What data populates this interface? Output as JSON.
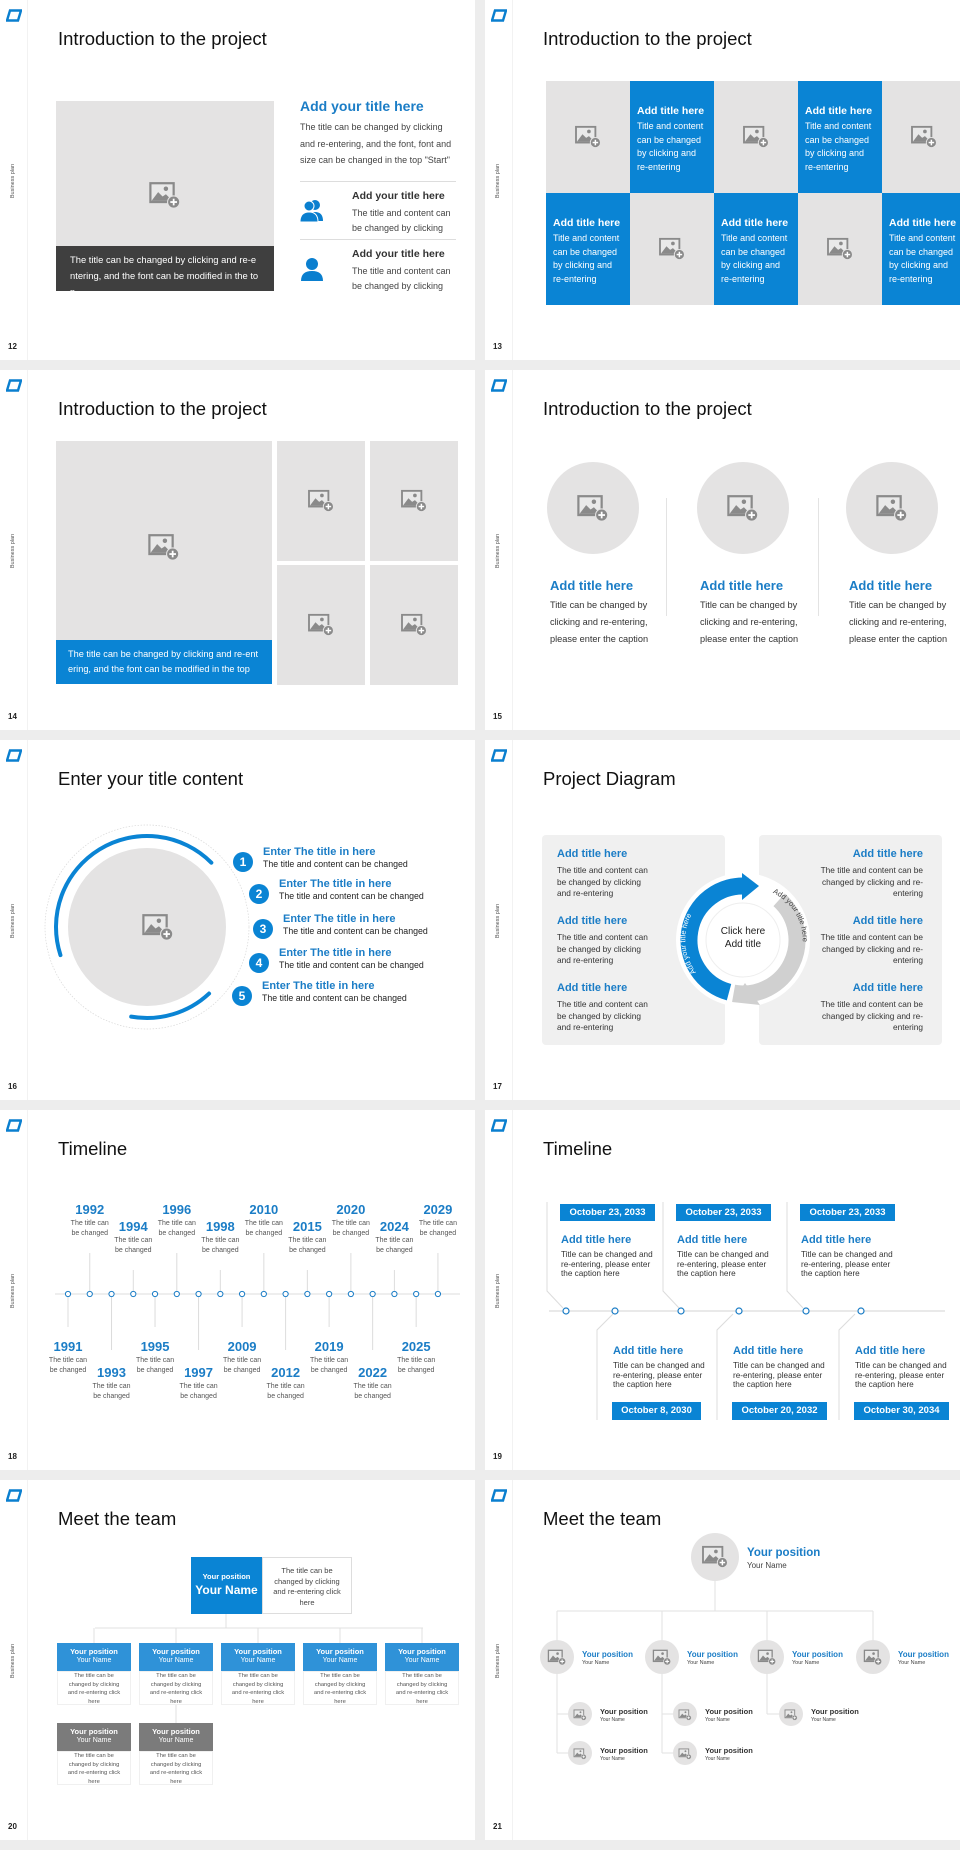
{
  "sidebar_label": "Business plan",
  "colors": {
    "accent": "#0a84d4",
    "text_blue": "#1b7dc6",
    "placeholder_gray": "#e4e3e3",
    "dark_caption": "#3f3f3f",
    "secondary_gray": "#7b7b7b"
  },
  "s12": {
    "page": "12",
    "title": "Introduction to the project",
    "caption": "The title can be changed by clicking and re-entering, and the font can be modified in the top",
    "main_title": "Add your title here",
    "main_body": "The title can be changed by clicking and re-entering, and the font, font and size can be changed in the top \"Start\"",
    "items": [
      {
        "icon": "users-icon",
        "title": "Add your title here",
        "body": "The title and content can be changed by clicking"
      },
      {
        "icon": "user-icon",
        "title": "Add your title here",
        "body": "The title and content can be changed by clicking"
      }
    ]
  },
  "s13": {
    "page": "13",
    "title": "Introduction to the project",
    "cells": [
      {
        "type": "image"
      },
      {
        "type": "text",
        "title": "Add title here",
        "body": "Title and content can be changed by clicking and re-entering"
      },
      {
        "type": "image"
      },
      {
        "type": "text",
        "title": "Add title here",
        "body": "Title and content can be changed by clicking and re-entering"
      },
      {
        "type": "image"
      },
      {
        "type": "text",
        "title": "Add title here",
        "body": "Title and content can be changed by clicking and re-entering"
      },
      {
        "type": "image"
      },
      {
        "type": "text",
        "title": "Add title here",
        "body": "Title and content can be changed by clicking and re-entering"
      },
      {
        "type": "image"
      },
      {
        "type": "text",
        "title": "Add title here",
        "body": "Title and content can be changed by clicking and re-entering"
      }
    ]
  },
  "s14": {
    "page": "14",
    "title": "Introduction to the project",
    "caption": "The title can be changed by clicking and re-entering, and the font can be modified in the top"
  },
  "s15": {
    "page": "15",
    "title": "Introduction to the project",
    "columns": [
      {
        "title": "Add title here",
        "body": "Title can be changed by clicking and re-entering, please enter the caption"
      },
      {
        "title": "Add title here",
        "body": "Title can be changed by clicking and re-entering, please enter the caption"
      },
      {
        "title": "Add title here",
        "body": "Title can be changed by clicking and re-entering, please enter the caption"
      }
    ]
  },
  "s16": {
    "page": "16",
    "title": "Enter your title content",
    "items": [
      {
        "num": "1",
        "title": "Enter The title in here",
        "body": "The title and content can be changed"
      },
      {
        "num": "2",
        "title": "Enter The title in here",
        "body": "The title and content can be changed"
      },
      {
        "num": "3",
        "title": "Enter The title in here",
        "body": "The title and content can be changed"
      },
      {
        "num": "4",
        "title": "Enter The title in here",
        "body": "The title and content can be changed"
      },
      {
        "num": "5",
        "title": "Enter The title in here",
        "body": "The title and content can be changed"
      }
    ]
  },
  "s17": {
    "page": "17",
    "title": "Project Diagram",
    "center_line1": "Click here",
    "center_line2": "Add title",
    "arrow_left": "Add your title here",
    "arrow_right": "Add your title here",
    "left": [
      {
        "title": "Add title here",
        "body": "The title and content can be changed by clicking and re-entering"
      },
      {
        "title": "Add title here",
        "body": "The title and content can be changed by clicking and re-entering"
      },
      {
        "title": "Add title here",
        "body": "The title and content can be changed by clicking and re-entering"
      }
    ],
    "right": [
      {
        "title": "Add title here",
        "body": "The title and content can be changed by clicking and re-entering"
      },
      {
        "title": "Add title here",
        "body": "The title and content can be changed by clicking and re-entering"
      },
      {
        "title": "Add title here",
        "body": "The title and content can be changed by clicking and re-entering"
      }
    ]
  },
  "s18": {
    "page": "18",
    "title": "Timeline",
    "events": [
      {
        "year": "1991",
        "text": "The title can be changed"
      },
      {
        "year": "1992",
        "text": "The title can be changed"
      },
      {
        "year": "1993",
        "text": "The title can be changed"
      },
      {
        "year": "1994",
        "text": "The title can be changed"
      },
      {
        "year": "1995",
        "text": "The title can be changed"
      },
      {
        "year": "1996",
        "text": "The title can be changed"
      },
      {
        "year": "1997",
        "text": "The title can be changed"
      },
      {
        "year": "1998",
        "text": "The title can be changed"
      },
      {
        "year": "2009",
        "text": "The title can be changed"
      },
      {
        "year": "2010",
        "text": "The title can be changed"
      },
      {
        "year": "2012",
        "text": "The title can be changed"
      },
      {
        "year": "2015",
        "text": "The title can be changed"
      },
      {
        "year": "2019",
        "text": "The title can be changed"
      },
      {
        "year": "2020",
        "text": "The title can be changed"
      },
      {
        "year": "2022",
        "text": "The title can be changed"
      },
      {
        "year": "2024",
        "text": "The title can be changed"
      },
      {
        "year": "2025",
        "text": "The title can be changed"
      },
      {
        "year": "2029",
        "text": "The title can be changed"
      }
    ]
  },
  "s19": {
    "page": "19",
    "title": "Timeline",
    "top": [
      {
        "date": "October 23, 2033",
        "title": "Add title here",
        "body": "Title can be changed and re-entering, please enter the caption here"
      },
      {
        "date": "October 23, 2033",
        "title": "Add title here",
        "body": "Title can be changed and re-entering, please enter the caption here"
      },
      {
        "date": "October 23, 2033",
        "title": "Add title here",
        "body": "Title can be changed and re-entering, please enter the caption here"
      }
    ],
    "bottom": [
      {
        "date": "October 8, 2030",
        "title": "Add title here",
        "body": "Title can be changed and re-entering, please enter the caption here"
      },
      {
        "date": "October 20, 2032",
        "title": "Add title here",
        "body": "Title can be changed and re-entering, please enter the caption here"
      },
      {
        "date": "October 30, 2034",
        "title": "Add title here",
        "body": "Title can be changed and re-entering, please enter the caption here"
      }
    ]
  },
  "s20": {
    "page": "20",
    "title": "Meet the team",
    "leader": {
      "position": "Your position",
      "name": "Your Name",
      "desc": "The title can be changed by clicking and re-entering click here"
    },
    "members": [
      {
        "position": "Your position",
        "name": "Your Name",
        "desc": "The title can be changed by clicking and re-entering click here"
      },
      {
        "position": "Your position",
        "name": "Your Name",
        "desc": "The title can be changed by clicking and re-entering click here"
      },
      {
        "position": "Your position",
        "name": "Your Name",
        "desc": "The title can be changed by clicking and re-entering click here"
      },
      {
        "position": "Your position",
        "name": "Your Name",
        "desc": "The title can be changed by clicking and re-entering click here"
      },
      {
        "position": "Your position",
        "name": "Your Name",
        "desc": "The title can be changed by clicking and re-entering click here"
      }
    ],
    "sub_members": [
      {
        "position": "Your position",
        "name": "Your Name",
        "desc": "The title can be changed by clicking and re-entering click here"
      },
      {
        "position": "Your position",
        "name": "Your Name",
        "desc": "The title can be changed by clicking and re-entering click here"
      }
    ]
  },
  "s21": {
    "page": "21",
    "title": "Meet the team",
    "leader": {
      "position": "Your position",
      "name": "Your Name"
    },
    "level2": [
      {
        "position": "Your position",
        "name": "Your Name"
      },
      {
        "position": "Your position",
        "name": "Your Name"
      },
      {
        "position": "Your position",
        "name": "Your Name"
      },
      {
        "position": "Your position",
        "name": "Your Name"
      }
    ],
    "level3": [
      {
        "position": "Your position",
        "name": "Your Name"
      },
      {
        "position": "Your position",
        "name": "Your Name"
      },
      {
        "position": "Your position",
        "name": "Your Name"
      },
      {
        "position": "Your position",
        "name": "Your Name"
      },
      {
        "position": "Your position",
        "name": "Your Name"
      }
    ]
  }
}
